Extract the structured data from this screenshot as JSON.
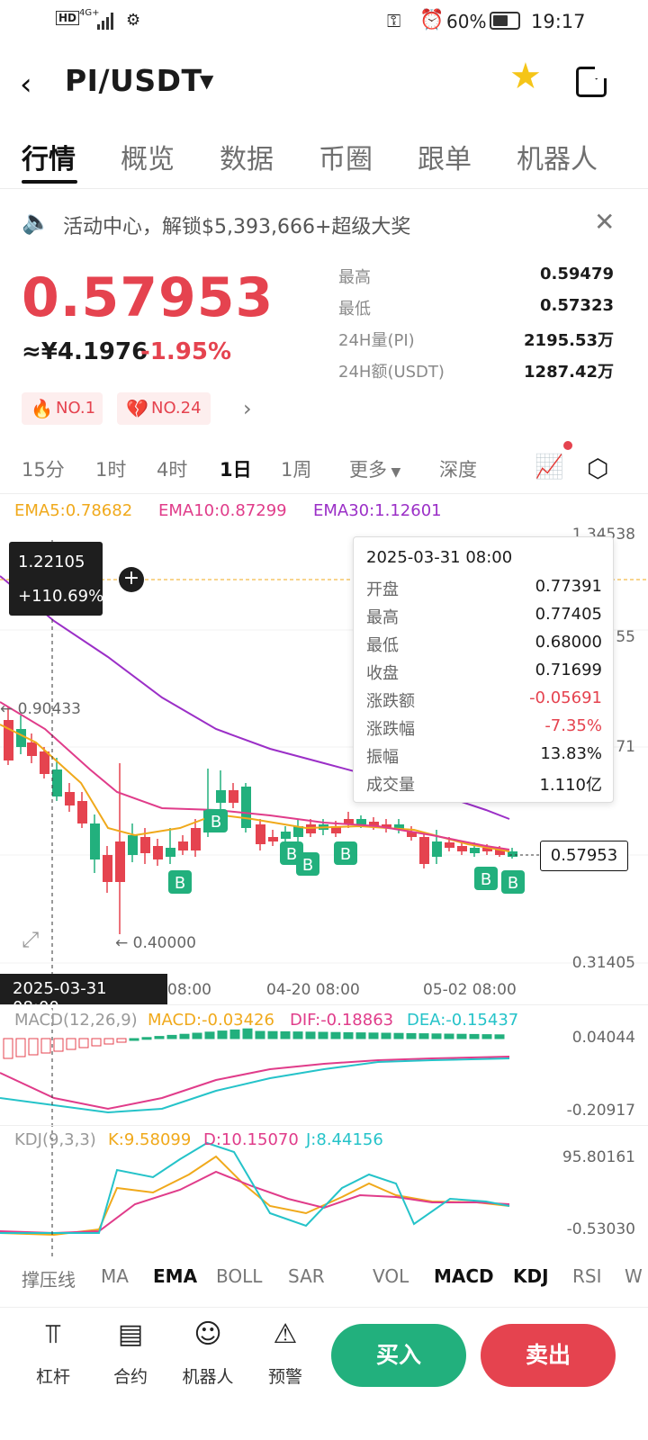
{
  "status": {
    "hd": "HD",
    "net": "4G+",
    "battery": "60%",
    "time": "19:17"
  },
  "header": {
    "back_icon": "chevron-left-icon",
    "pair": "PI/USDT"
  },
  "tabs": [
    "行情",
    "概览",
    "数据",
    "币圈",
    "跟单",
    "机器人"
  ],
  "notice": {
    "text": "活动中心，解锁$5,393,666+超级大奖"
  },
  "ticker": {
    "price": "0.57953",
    "cny": "≈¥4.1976",
    "change": "-1.95%"
  },
  "stats": [
    {
      "label": "最高",
      "value": "0.59479"
    },
    {
      "label": "最低",
      "value": "0.57323"
    },
    {
      "label": "24H量(PI)",
      "value": "2195.53万"
    },
    {
      "label": "24H额(USDT)",
      "value": "1287.42万"
    }
  ],
  "badges": [
    "NO.1",
    "NO.24"
  ],
  "intervals": [
    "15分",
    "1时",
    "4时",
    "1日",
    "1周",
    "更多",
    "深度"
  ],
  "ema": {
    "ema5": "EMA5:0.78682",
    "ema10": "EMA10:0.87299",
    "ema30": "EMA30:1.12601"
  },
  "cross": {
    "price": "1.22105",
    "pct": "+110.69%",
    "date": "2025-03-31 08:00"
  },
  "tooltip": {
    "date": "2025-03-31 08:00",
    "rows": [
      {
        "label": "开盘",
        "value": "0.77391"
      },
      {
        "label": "最高",
        "value": "0.77405"
      },
      {
        "label": "最低",
        "value": "0.68000"
      },
      {
        "label": "收盘",
        "value": "0.71699"
      },
      {
        "label": "涨跌额",
        "value": "-0.05691"
      },
      {
        "label": "涨跌幅",
        "value": "-7.35%"
      },
      {
        "label": "振幅",
        "value": "13.83%"
      },
      {
        "label": "成交量",
        "value": "1.110亿"
      }
    ]
  },
  "axis": {
    "top": "1.34538",
    "mid1": "55",
    "mid2": "71",
    "bottom": "0.31405",
    "last": "0.57953",
    "hi_mark": "← 0.90433",
    "lo_mark": "← 0.40000",
    "x1": "08:00",
    "x2": "04-20 08:00",
    "x3": "05-02 08:00"
  },
  "macd": {
    "label": "MACD(12,26,9)",
    "macd": "MACD:-0.03426",
    "dif": "DIF:-0.18863",
    "dea": "DEA:-0.15437",
    "top": "0.04044",
    "bottom": "-0.20917"
  },
  "kdj": {
    "label": "KDJ(9,3,3)",
    "k": "K:9.58099",
    "d": "D:10.15070",
    "j": "J:8.44156",
    "top": "95.80161",
    "bottom": "-0.53030"
  },
  "indicators": [
    "撑压线",
    "MA",
    "EMA",
    "BOLL",
    "SAR",
    "VOL",
    "MACD",
    "KDJ",
    "RSI",
    "W"
  ],
  "bottom": {
    "items": [
      "杠杆",
      "合约",
      "机器人",
      "预警"
    ],
    "buy": "买入",
    "sell": "卖出"
  },
  "colors": {
    "up": "#22b07d",
    "down": "#e5434f",
    "ema5": "#f0a91b",
    "ema10": "#e03c8a",
    "ema30": "#9b2fc7"
  }
}
